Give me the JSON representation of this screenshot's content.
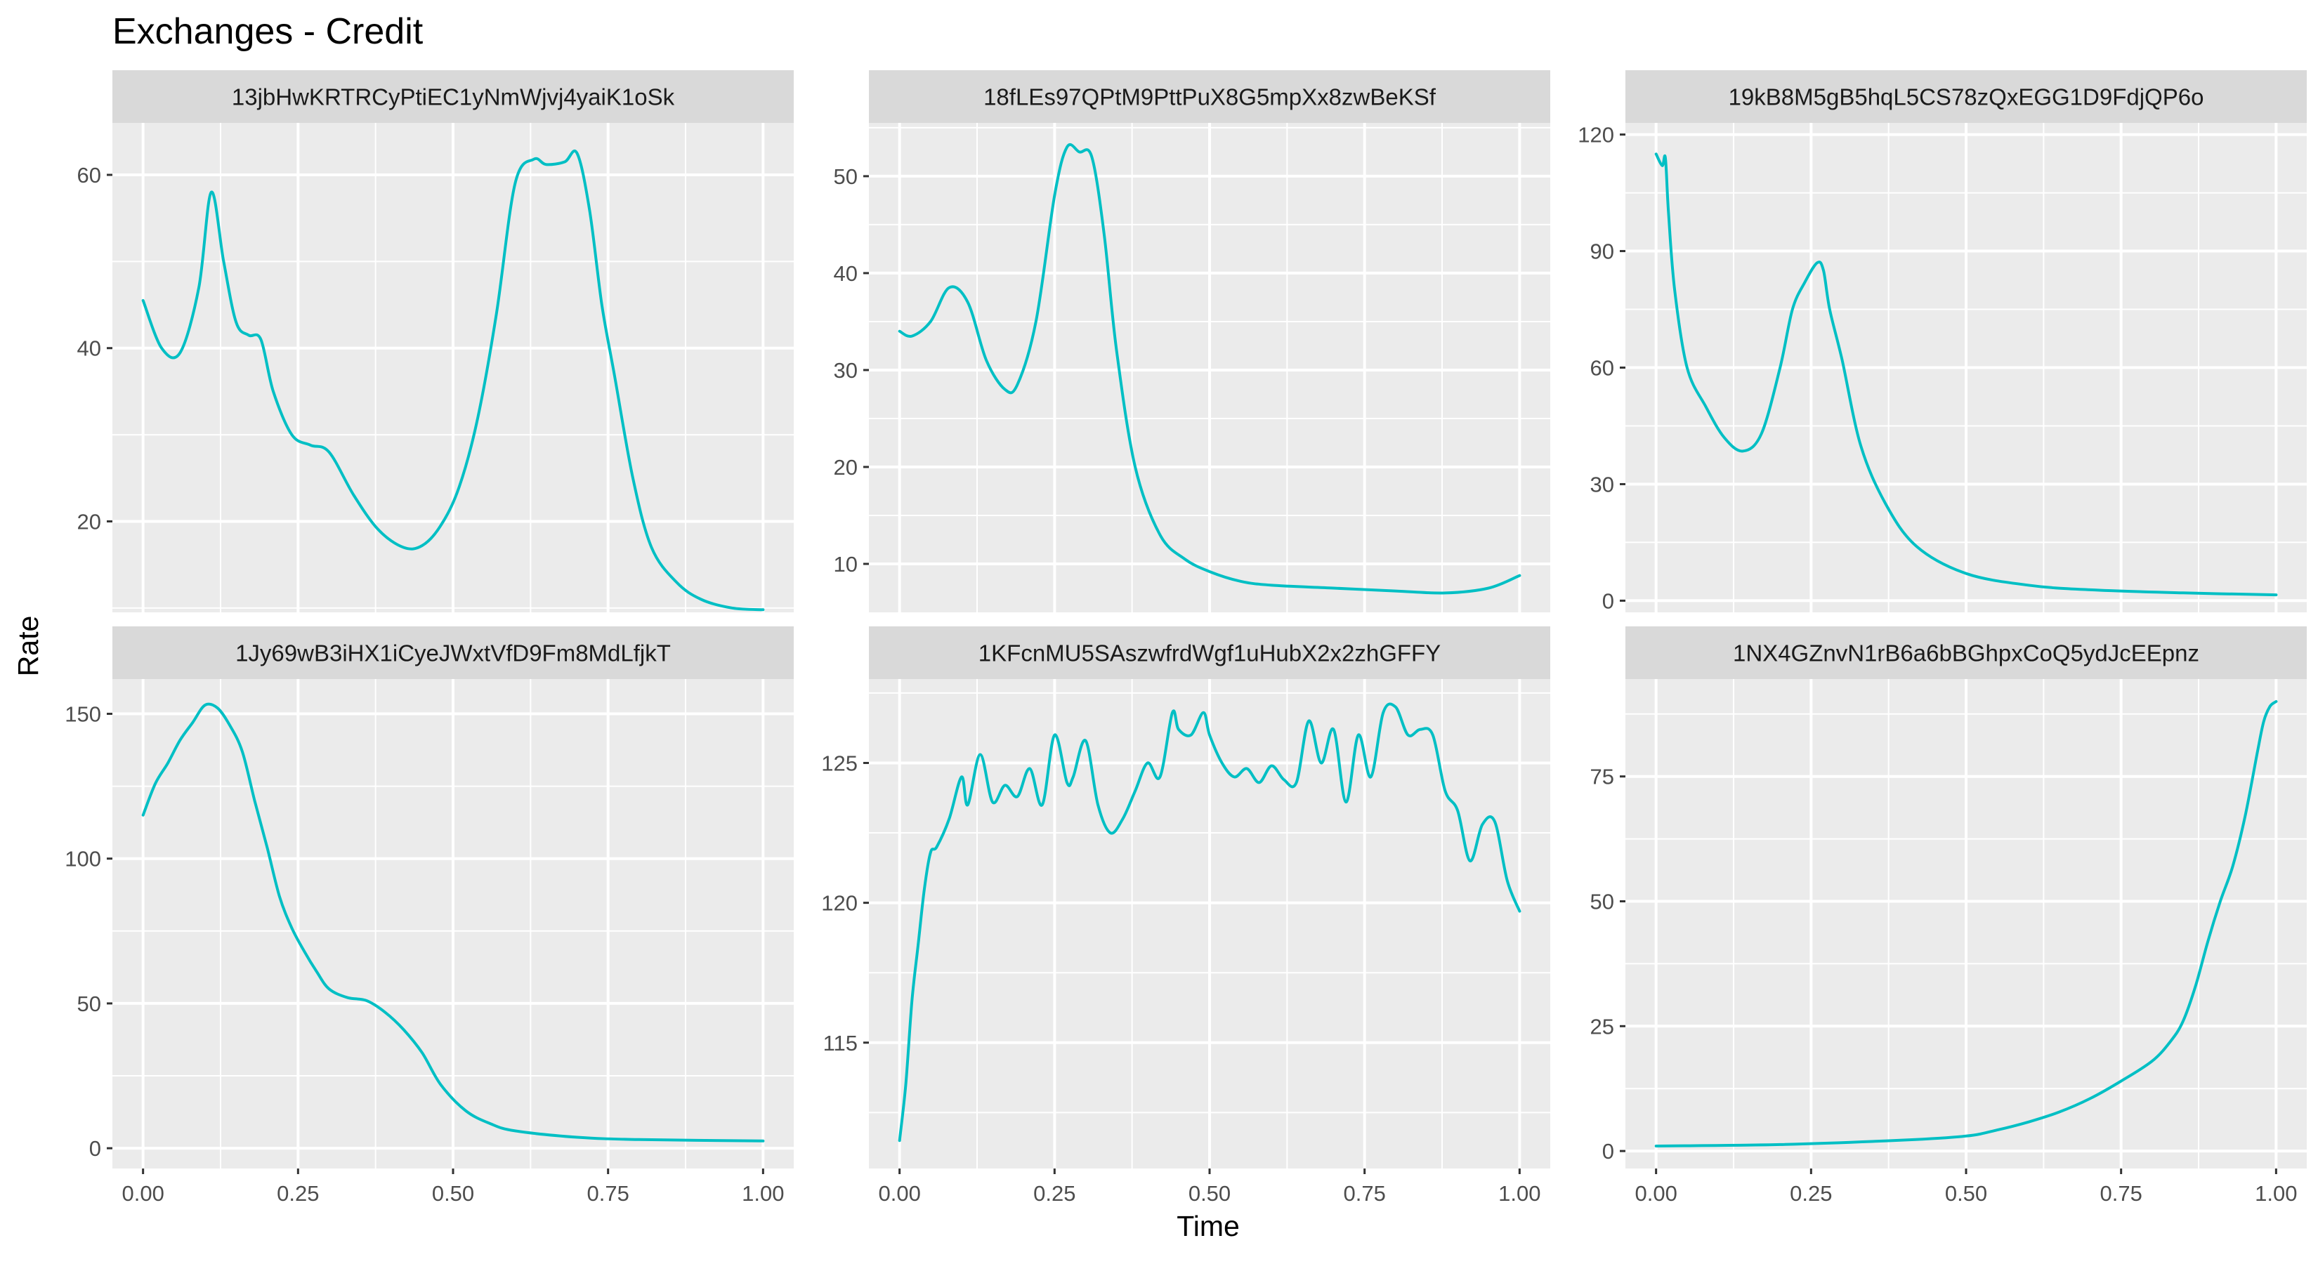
{
  "chart_data": {
    "type": "line",
    "title": "Exchanges - Credit",
    "xlabel": "Time",
    "ylabel": "Rate",
    "line_color": "#00bfc4",
    "grid": true,
    "x_ticks": [
      "0.00",
      "0.25",
      "0.50",
      "0.75",
      "1.00"
    ],
    "xlim": [
      0,
      1
    ],
    "panels": [
      {
        "name": "13jbHwKRTRCyPtiEC1yNmWjvj4yaiK1oSk",
        "ylim": [
          9.5,
          66
        ],
        "y_ticks": [
          20,
          40,
          60
        ],
        "x": [
          0.0,
          0.03,
          0.06,
          0.09,
          0.11,
          0.13,
          0.15,
          0.17,
          0.19,
          0.21,
          0.24,
          0.27,
          0.3,
          0.34,
          0.38,
          0.42,
          0.45,
          0.48,
          0.51,
          0.54,
          0.57,
          0.6,
          0.63,
          0.65,
          0.68,
          0.7,
          0.72,
          0.74,
          0.76,
          0.79,
          0.82,
          0.86,
          0.9,
          0.95,
          1.0
        ],
        "y": [
          45.5,
          40.0,
          39.5,
          47.0,
          58.0,
          50.0,
          43.0,
          41.5,
          41.0,
          35.0,
          30.0,
          28.8,
          28.0,
          23.0,
          19.0,
          17.0,
          17.2,
          19.5,
          24.0,
          32.0,
          44.0,
          59.0,
          61.8,
          61.2,
          61.5,
          62.5,
          56.0,
          45.0,
          37.0,
          25.0,
          17.0,
          13.0,
          11.0,
          10.0,
          9.8
        ]
      },
      {
        "name": "18fLEs97QPtM9PttPuX8G5mpXx8zwBeKSf",
        "ylim": [
          5,
          55.5
        ],
        "y_ticks": [
          10,
          20,
          30,
          40,
          50
        ],
        "x": [
          0.0,
          0.02,
          0.05,
          0.08,
          0.11,
          0.14,
          0.17,
          0.19,
          0.22,
          0.25,
          0.27,
          0.29,
          0.31,
          0.33,
          0.35,
          0.38,
          0.42,
          0.46,
          0.5,
          0.55,
          0.6,
          0.7,
          0.8,
          0.88,
          0.95,
          1.0
        ],
        "y": [
          34.0,
          33.5,
          35.0,
          38.5,
          37.0,
          31.0,
          28.0,
          28.5,
          35.0,
          48.0,
          53.0,
          52.5,
          52.0,
          44.0,
          32.0,
          20.0,
          13.0,
          10.5,
          9.2,
          8.2,
          7.8,
          7.5,
          7.2,
          7.0,
          7.5,
          8.8
        ]
      },
      {
        "name": "19kB8M5gB5hqL5CS78zQxEGG1D9FdjQP6o",
        "ylim": [
          -3,
          123
        ],
        "y_ticks": [
          0,
          30,
          60,
          90,
          120
        ],
        "x": [
          0.0,
          0.01,
          0.015,
          0.02,
          0.03,
          0.05,
          0.08,
          0.11,
          0.14,
          0.17,
          0.2,
          0.22,
          0.24,
          0.26,
          0.27,
          0.28,
          0.3,
          0.33,
          0.37,
          0.42,
          0.5,
          0.6,
          0.7,
          0.85,
          1.0
        ],
        "y": [
          115.0,
          112.0,
          114.0,
          100.0,
          80.0,
          60.0,
          50.0,
          42.0,
          38.5,
          43.0,
          60.0,
          75.0,
          82.0,
          87.0,
          85.0,
          75.0,
          62.0,
          40.0,
          25.0,
          14.0,
          7.0,
          4.0,
          2.8,
          2.0,
          1.5
        ]
      },
      {
        "name": "1Jy69wB3iHX1iCyeJWxtVfD9Fm8MdLfjkT",
        "ylim": [
          -7,
          162
        ],
        "y_ticks": [
          0,
          50,
          100,
          150
        ],
        "x": [
          0.0,
          0.02,
          0.04,
          0.06,
          0.08,
          0.1,
          0.12,
          0.14,
          0.16,
          0.18,
          0.2,
          0.22,
          0.24,
          0.26,
          0.28,
          0.3,
          0.33,
          0.36,
          0.39,
          0.42,
          0.45,
          0.48,
          0.52,
          0.56,
          0.6,
          0.7,
          0.8,
          1.0
        ],
        "y": [
          115.0,
          126.0,
          133.0,
          141.0,
          147.0,
          153.0,
          152.0,
          146.0,
          137.0,
          120.0,
          104.0,
          87.0,
          76.0,
          68.0,
          61.0,
          55.0,
          52.0,
          51.0,
          47.0,
          41.0,
          33.0,
          22.0,
          13.0,
          8.5,
          6.0,
          3.8,
          3.0,
          2.5
        ]
      },
      {
        "name": "1KFcnMU5SAszwfrdWgf1uHubX2x2zhGFFY",
        "ylim": [
          110.5,
          128
        ],
        "y_ticks": [
          115,
          120,
          125
        ],
        "x": [
          0.0,
          0.01,
          0.02,
          0.03,
          0.04,
          0.05,
          0.06,
          0.08,
          0.1,
          0.11,
          0.13,
          0.15,
          0.17,
          0.19,
          0.21,
          0.23,
          0.25,
          0.27,
          0.28,
          0.3,
          0.32,
          0.34,
          0.36,
          0.38,
          0.4,
          0.42,
          0.44,
          0.45,
          0.47,
          0.49,
          0.5,
          0.52,
          0.54,
          0.56,
          0.58,
          0.6,
          0.62,
          0.64,
          0.66,
          0.68,
          0.7,
          0.72,
          0.74,
          0.76,
          0.78,
          0.8,
          0.82,
          0.84,
          0.86,
          0.88,
          0.9,
          0.92,
          0.94,
          0.96,
          0.98,
          1.0
        ],
        "y": [
          111.5,
          113.5,
          116.5,
          118.5,
          120.5,
          121.8,
          122.0,
          123.0,
          124.5,
          123.5,
          125.3,
          123.6,
          124.2,
          123.8,
          124.8,
          123.5,
          126.0,
          124.3,
          124.5,
          125.8,
          123.5,
          122.5,
          123.0,
          124.0,
          125.0,
          124.5,
          126.8,
          126.2,
          126.0,
          126.8,
          126.0,
          125.0,
          124.5,
          124.8,
          124.3,
          124.9,
          124.4,
          124.3,
          126.5,
          125.0,
          126.2,
          123.6,
          126.0,
          124.5,
          126.8,
          127.0,
          126.0,
          126.2,
          126.0,
          124.0,
          123.3,
          121.5,
          122.8,
          122.9,
          120.8,
          119.7
        ]
      },
      {
        "name": "1NX4GZnvN1rB6a6bBGhpxCoQ5ydJcEEpnz",
        "ylim": [
          -3.5,
          94.5
        ],
        "y_ticks": [
          0,
          25,
          50,
          75
        ],
        "x": [
          0.0,
          0.2,
          0.4,
          0.5,
          0.55,
          0.6,
          0.65,
          0.7,
          0.75,
          0.8,
          0.83,
          0.85,
          0.87,
          0.89,
          0.91,
          0.93,
          0.95,
          0.97,
          0.98,
          0.99,
          1.0
        ],
        "y": [
          1.0,
          1.3,
          2.2,
          3.0,
          4.2,
          5.8,
          7.8,
          10.5,
          14.0,
          18.0,
          22.0,
          26.0,
          33.0,
          42.0,
          50.0,
          57.0,
          67.0,
          80.0,
          86.0,
          89.0,
          90.0
        ]
      }
    ]
  }
}
